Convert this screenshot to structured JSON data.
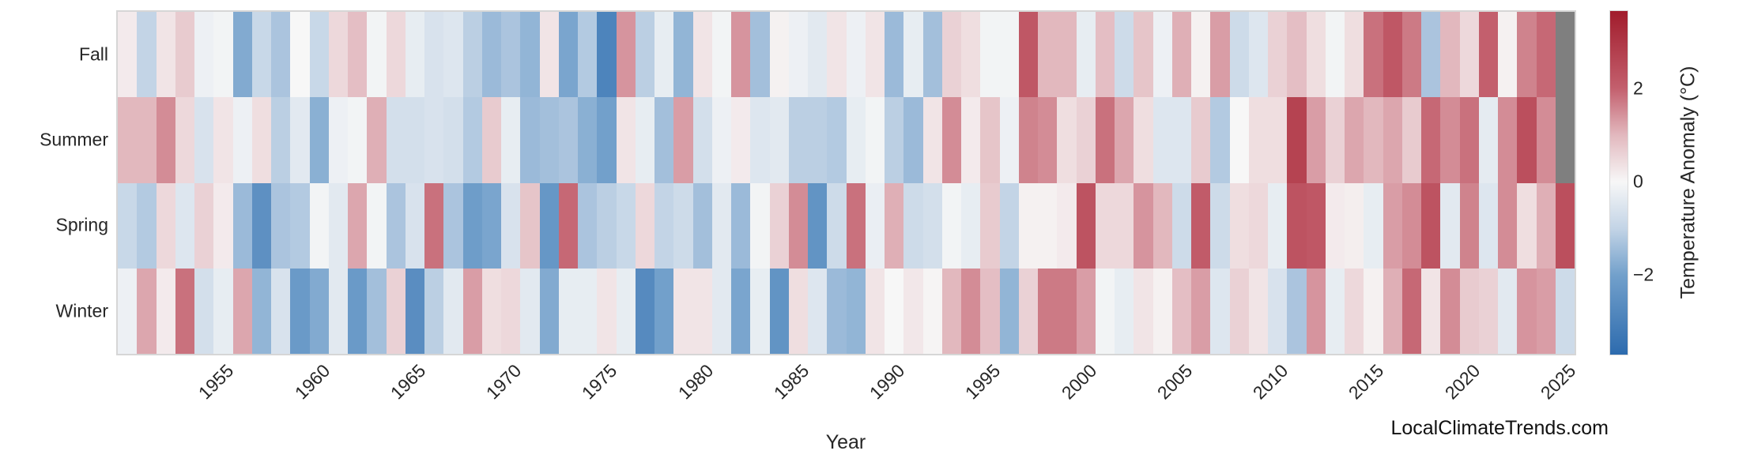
{
  "watermark": {
    "text": "LocalClimateTrends.com"
  },
  "chart_data": {
    "type": "heatmap",
    "title": "",
    "xlabel": "Year",
    "ylabel": "",
    "rows": [
      "Fall",
      "Summer",
      "Spring",
      "Winter"
    ],
    "x_start": 1950,
    "x_end": 2025,
    "x_tick_years": [
      1955,
      1960,
      1965,
      1970,
      1975,
      1980,
      1985,
      1990,
      1995,
      2000,
      2005,
      2010,
      2015,
      2020,
      2025
    ],
    "legend_position": "right",
    "grid": false,
    "missing_color": "#7f7f7f",
    "colorbar": {
      "label": "Temperature Anomaly (°C)",
      "vmin": -3.7,
      "vmax": 3.65,
      "ticks": [
        {
          "value": 2,
          "label": "2"
        },
        {
          "value": 0,
          "label": "0"
        },
        {
          "value": -2,
          "label": "−2"
        }
      ],
      "stops": [
        {
          "value": -3.7,
          "color": "#2d6bae"
        },
        {
          "value": -2.0,
          "color": "#72a0cb"
        },
        {
          "value": -1.0,
          "color": "#c3d4e6"
        },
        {
          "value": 0.0,
          "color": "#f7f7f7"
        },
        {
          "value": 1.0,
          "color": "#e2b8be"
        },
        {
          "value": 2.0,
          "color": "#c35f6d"
        },
        {
          "value": 3.65,
          "color": "#a11c2c"
        }
      ]
    },
    "series": [
      {
        "name": "Fall",
        "values": [
          0.2,
          -1,
          0.3,
          0.7,
          -0.2,
          -0.1,
          -1.8,
          -0.9,
          -1.3,
          0,
          -0.9,
          0.5,
          0.9,
          -0.1,
          0.5,
          -0.3,
          -0.6,
          -0.5,
          -1.1,
          -1.5,
          -1.3,
          -1.6,
          0.3,
          -1.9,
          -1.2,
          -2.9,
          1.4,
          -1.1,
          -0.3,
          -1.6,
          0.3,
          -0.1,
          1.4,
          -1.4,
          0.1,
          -0.2,
          -0.4,
          0.3,
          -0.2,
          0.3,
          -1.5,
          -0.3,
          -1.4,
          0.6,
          0.4,
          -0.1,
          -0.1,
          2.2,
          1,
          1,
          -0.3,
          0.9,
          -0.8,
          0.8,
          -0.2,
          1.1,
          0.1,
          1.3,
          -0.8,
          -0.5,
          0.6,
          0.9,
          0.4,
          -0.1,
          0.4,
          1.8,
          2.2,
          1.7,
          -1.3,
          1,
          0.5,
          2,
          0.1,
          1.6,
          1.9,
          null
        ]
      },
      {
        "name": "Summer",
        "values": [
          1,
          1,
          1.5,
          0.5,
          -0.6,
          0.3,
          -0.2,
          0.4,
          -1.1,
          -0.4,
          -1.7,
          -0.2,
          -0.1,
          1.1,
          -0.7,
          -0.7,
          -0.6,
          -0.7,
          -1.2,
          0.7,
          -0.3,
          -1.5,
          -1.4,
          -1.3,
          -1.7,
          -2,
          0.3,
          -0.3,
          -1.4,
          1.3,
          -0.7,
          -0.2,
          0.2,
          -0.5,
          -0.4,
          -1.1,
          -1.1,
          -1.2,
          -0.3,
          -0.1,
          -1.1,
          -1.5,
          0.3,
          1.5,
          0.2,
          0.8,
          -0.2,
          1.6,
          1.5,
          0.4,
          0.6,
          1.8,
          1.2,
          0.4,
          -0.5,
          -0.5,
          0.7,
          -1.2,
          0,
          0.4,
          0.4,
          2.7,
          1.3,
          0.6,
          1.2,
          1,
          1.2,
          0.7,
          1.9,
          1.5,
          1.8,
          -0.35,
          1.5,
          2.4,
          1.5,
          null
        ]
      },
      {
        "name": "Spring",
        "values": [
          -0.9,
          -1.2,
          0.5,
          -0.5,
          0.6,
          0.2,
          -1.5,
          -2.5,
          -1.3,
          -1.2,
          -0.1,
          -0.4,
          1.2,
          -0.1,
          -1.3,
          -0.6,
          1.8,
          -1.3,
          -2.1,
          -1.9,
          -0.6,
          0.8,
          -2.3,
          1.9,
          -1.3,
          -1.1,
          -0.9,
          0.5,
          -1,
          -0.8,
          -1.4,
          -0.4,
          -1.5,
          -0.1,
          0.6,
          1.5,
          -2.4,
          -0.8,
          1.8,
          -0.25,
          1.1,
          -0.8,
          -0.7,
          -0.1,
          -0.3,
          0.7,
          -1,
          0.1,
          0.1,
          0.2,
          2.3,
          0.5,
          0.5,
          1.4,
          1,
          -0.8,
          2.1,
          -0.8,
          0.4,
          0.5,
          -0.3,
          2.3,
          2.2,
          0.2,
          0.15,
          -0.3,
          1.3,
          1.5,
          2.3,
          -0.4,
          1.6,
          -0.5,
          1.5,
          0.4,
          1.1,
          2.4
        ]
      },
      {
        "name": "Winter",
        "values": [
          -0.2,
          1.2,
          0.2,
          1.8,
          -0.7,
          -0.3,
          1.2,
          -1.6,
          -0.6,
          -2.2,
          -1.8,
          -0.4,
          -2.2,
          -1.4,
          0.6,
          -2.6,
          -1.1,
          -0.4,
          1.3,
          0.4,
          0.5,
          -0.4,
          -1.8,
          -0.3,
          -0.3,
          0.3,
          -0.3,
          -2.7,
          -2,
          0.3,
          0.3,
          -0.4,
          -1.9,
          -0.3,
          -2.4,
          0.4,
          -0.5,
          -1.5,
          -1.6,
          0.3,
          0,
          0.25,
          0.05,
          1,
          1.5,
          0.9,
          -1.6,
          0.6,
          1.7,
          1.7,
          1.3,
          -0.1,
          -0.3,
          0.3,
          0.1,
          0.9,
          1.3,
          -0.5,
          0.6,
          0.3,
          -0.6,
          -1.3,
          1.4,
          -0.3,
          0.5,
          0.1,
          1.1,
          1.9,
          0.3,
          1.5,
          0.7,
          0.6,
          -0.4,
          1.4,
          1.3,
          -0.8
        ]
      }
    ]
  }
}
